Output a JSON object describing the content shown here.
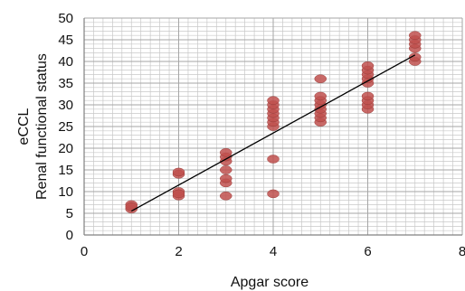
{
  "chart_data": {
    "type": "scatter",
    "title": "",
    "xlabel": "Apgar score",
    "ylabel_lines": [
      "eCCL",
      "Renal functional status"
    ],
    "xlim": [
      0,
      8
    ],
    "ylim": [
      0,
      50
    ],
    "x_ticks": [
      0,
      2,
      4,
      6,
      8
    ],
    "y_ticks": [
      0,
      5,
      10,
      15,
      20,
      25,
      30,
      35,
      40,
      45,
      50
    ],
    "grid": true,
    "legend": "none",
    "marker_color": "#c0504d",
    "trendline_color": "#000000",
    "grid_color": "#a6a6a6",
    "series": [
      {
        "points": [
          [
            1,
            6
          ],
          [
            1,
            7
          ],
          [
            1,
            6.5
          ],
          [
            2,
            9
          ],
          [
            2,
            10
          ],
          [
            2,
            14
          ],
          [
            2,
            14.5
          ],
          [
            2,
            9.5
          ],
          [
            3,
            9
          ],
          [
            3,
            12
          ],
          [
            3,
            13
          ],
          [
            3,
            15
          ],
          [
            3,
            17
          ],
          [
            3,
            18
          ],
          [
            3,
            19
          ],
          [
            4,
            9.5
          ],
          [
            4,
            17.5
          ],
          [
            4,
            25
          ],
          [
            4,
            26
          ],
          [
            4,
            27
          ],
          [
            4,
            28
          ],
          [
            4,
            29
          ],
          [
            4,
            30
          ],
          [
            4,
            31
          ],
          [
            5,
            26
          ],
          [
            5,
            27
          ],
          [
            5,
            28
          ],
          [
            5,
            29
          ],
          [
            5,
            30
          ],
          [
            5,
            31
          ],
          [
            5,
            32
          ],
          [
            5,
            36
          ],
          [
            6,
            29
          ],
          [
            6,
            30
          ],
          [
            6,
            31
          ],
          [
            6,
            32
          ],
          [
            6,
            35
          ],
          [
            6,
            36
          ],
          [
            6,
            37
          ],
          [
            6,
            38
          ],
          [
            6,
            39
          ],
          [
            7,
            40
          ],
          [
            7,
            41
          ],
          [
            7,
            43
          ],
          [
            7,
            44
          ],
          [
            7,
            45
          ],
          [
            7,
            46
          ]
        ]
      }
    ],
    "trendline": {
      "x": [
        1,
        7
      ],
      "y": [
        5.5,
        41.5
      ]
    }
  }
}
